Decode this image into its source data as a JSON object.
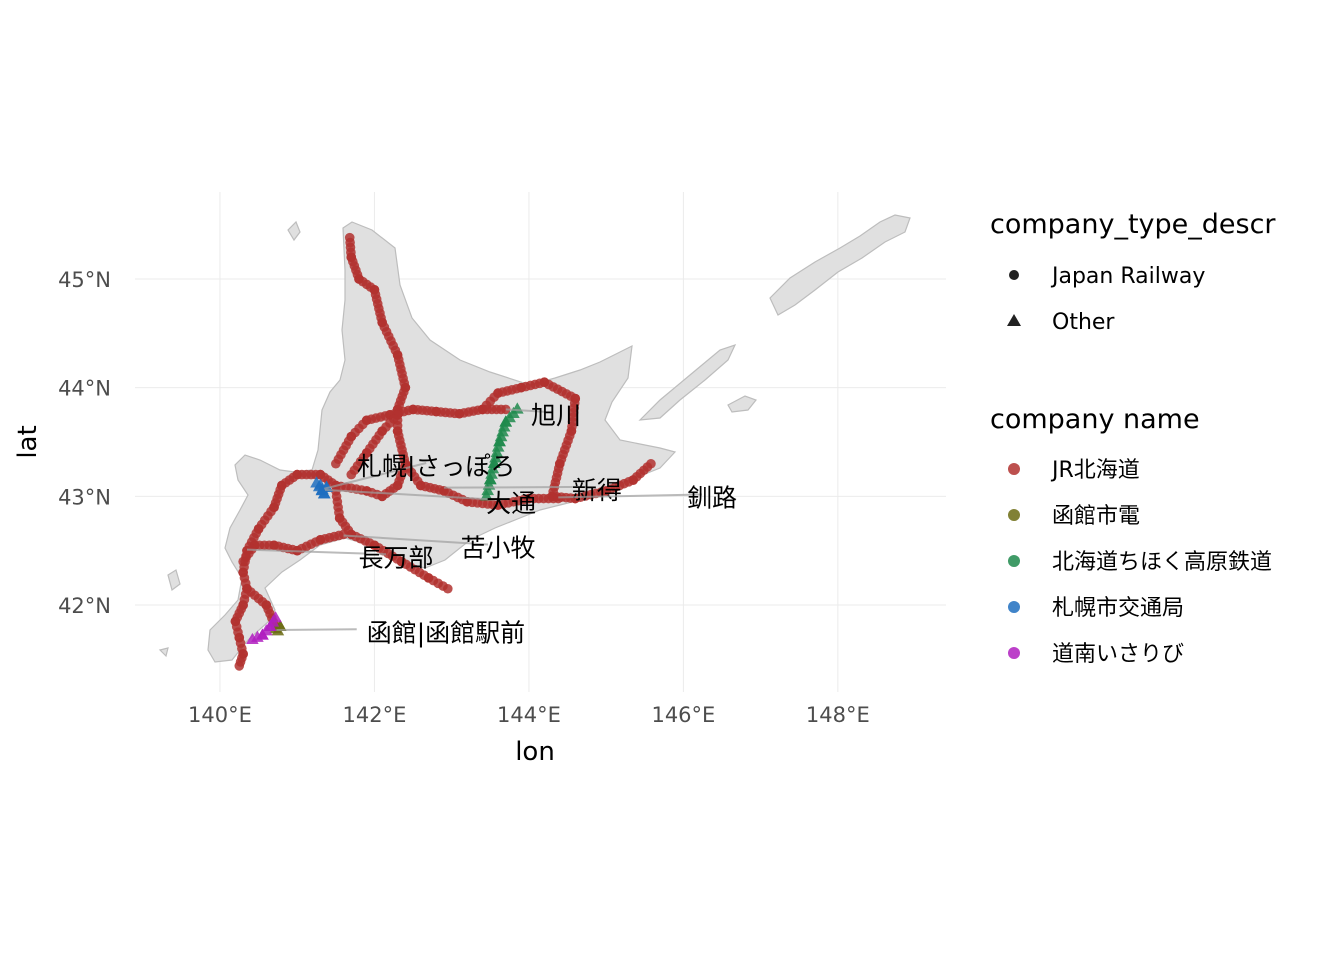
{
  "chart_data": {
    "type": "scatter",
    "xlabel": "lon",
    "ylabel": "lat",
    "xlim": [
      138.9,
      149.4
    ],
    "ylim": [
      41.2,
      45.8
    ],
    "x_ticks": [
      {
        "value": 140,
        "label": "140°E"
      },
      {
        "value": 142,
        "label": "142°E"
      },
      {
        "value": 144,
        "label": "144°E"
      },
      {
        "value": 146,
        "label": "146°E"
      },
      {
        "value": 148,
        "label": "148°E"
      }
    ],
    "y_ticks": [
      {
        "value": 42,
        "label": "42°N"
      },
      {
        "value": 43,
        "label": "43°N"
      },
      {
        "value": 44,
        "label": "44°N"
      },
      {
        "value": 45,
        "label": "45°N"
      }
    ],
    "grid": true,
    "land_color": "#e0e0e0",
    "land_border_color": "#bdbdbd",
    "legend_shape": {
      "title": "company_type_descr",
      "entries": [
        {
          "label": "Japan Railway",
          "shape": "circle"
        },
        {
          "label": "Other",
          "shape": "triangle"
        }
      ]
    },
    "legend_color": {
      "title": "company name",
      "entries": [
        {
          "label": "JR北海道",
          "color": "#b2312f"
        },
        {
          "label": "函館市電",
          "color": "#6b6b12"
        },
        {
          "label": "北海道ちほく高原鉄道",
          "color": "#1f8a4c"
        },
        {
          "label": "札幌市交通局",
          "color": "#1f6fbf"
        },
        {
          "label": "道南いさりび",
          "color": "#b01fbf"
        }
      ]
    },
    "series": [
      {
        "name": "JR北海道",
        "shape": "circle",
        "color": "#b2312f",
        "lines": [
          [
            [
              141.68,
              45.38
            ],
            [
              141.7,
              45.2
            ],
            [
              141.8,
              45.0
            ],
            [
              142.0,
              44.9
            ],
            [
              142.1,
              44.6
            ],
            [
              142.3,
              44.3
            ],
            [
              142.4,
              44.0
            ],
            [
              142.3,
              43.8
            ],
            [
              142.3,
              43.6
            ],
            [
              142.4,
              43.3
            ],
            [
              142.3,
              43.1
            ],
            [
              142.1,
              43.0
            ],
            [
              141.9,
              43.05
            ],
            [
              141.5,
              43.1
            ],
            [
              141.3,
              43.2
            ],
            [
              141.0,
              43.2
            ],
            [
              140.8,
              43.1
            ],
            [
              140.7,
              42.9
            ],
            [
              140.5,
              42.7
            ],
            [
              140.35,
              42.5
            ],
            [
              140.3,
              42.3
            ],
            [
              140.35,
              42.15
            ],
            [
              140.6,
              42.0
            ],
            [
              140.72,
              41.8
            ]
          ],
          [
            [
              141.5,
              43.3
            ],
            [
              141.7,
              43.55
            ],
            [
              141.9,
              43.7
            ],
            [
              142.2,
              43.75
            ],
            [
              142.5,
              43.8
            ],
            [
              142.8,
              43.78
            ],
            [
              143.1,
              43.76
            ],
            [
              143.4,
              43.8
            ],
            [
              143.7,
              43.8
            ]
          ],
          [
            [
              142.3,
              43.75
            ],
            [
              142.1,
              43.6
            ],
            [
              141.9,
              43.4
            ],
            [
              141.7,
              43.2
            ]
          ],
          [
            [
              143.4,
              43.8
            ],
            [
              143.6,
              43.95
            ],
            [
              143.9,
              44.0
            ],
            [
              144.2,
              44.05
            ],
            [
              144.6,
              43.9
            ],
            [
              144.55,
              43.6
            ],
            [
              144.4,
              43.3
            ],
            [
              144.3,
              43.0
            ],
            [
              144.6,
              42.98
            ],
            [
              145.0,
              43.05
            ],
            [
              145.35,
              43.15
            ],
            [
              145.58,
              43.3
            ]
          ],
          [
            [
              142.4,
              43.3
            ],
            [
              142.6,
              43.1
            ],
            [
              142.9,
              43.05
            ],
            [
              143.2,
              42.95
            ],
            [
              143.6,
              42.92
            ],
            [
              144.0,
              42.98
            ],
            [
              144.38,
              42.98
            ]
          ],
          [
            [
              141.5,
              43.05
            ],
            [
              141.55,
              42.8
            ],
            [
              141.7,
              42.65
            ],
            [
              142.0,
              42.55
            ],
            [
              142.35,
              42.4
            ],
            [
              142.7,
              42.25
            ],
            [
              142.95,
              42.15
            ]
          ],
          [
            [
              141.6,
              42.65
            ],
            [
              141.3,
              42.6
            ],
            [
              141.0,
              42.5
            ],
            [
              140.7,
              42.55
            ],
            [
              140.45,
              42.55
            ],
            [
              140.3,
              42.4
            ]
          ],
          [
            [
              140.35,
              42.15
            ],
            [
              140.3,
              42.0
            ],
            [
              140.2,
              41.85
            ],
            [
              140.25,
              41.7
            ],
            [
              140.3,
              41.55
            ],
            [
              140.25,
              41.44
            ]
          ]
        ]
      },
      {
        "name": "北海道ちほく高原鉄道",
        "shape": "triangle",
        "color": "#1f8a4c",
        "lines": [
          [
            [
              143.45,
              43.0
            ],
            [
              143.5,
              43.15
            ],
            [
              143.55,
              43.3
            ],
            [
              143.62,
              43.5
            ],
            [
              143.7,
              43.68
            ],
            [
              143.85,
              43.8
            ]
          ]
        ]
      },
      {
        "name": "札幌市交通局",
        "shape": "triangle",
        "color": "#1f6fbf",
        "lines": [
          [
            [
              141.25,
              43.12
            ],
            [
              141.32,
              43.05
            ],
            [
              141.38,
              43.08
            ],
            [
              141.35,
              43.02
            ],
            [
              141.3,
              43.1
            ]
          ]
        ]
      },
      {
        "name": "函館市電",
        "shape": "triangle",
        "color": "#6b6b12",
        "lines": [
          [
            [
              140.72,
              41.78
            ],
            [
              140.78,
              41.8
            ],
            [
              140.75,
              41.76
            ]
          ]
        ]
      },
      {
        "name": "道南いさりび",
        "shape": "triangle",
        "color": "#b01fbf",
        "lines": [
          [
            [
              140.72,
              41.88
            ],
            [
              140.65,
              41.8
            ],
            [
              140.55,
              41.72
            ],
            [
              140.42,
              41.68
            ]
          ]
        ]
      }
    ],
    "annotations": [
      {
        "text": "旭川",
        "lon": 143.7,
        "lat": 43.8,
        "label_lon": 144.35,
        "label_lat": 43.74,
        "anchor": "middle"
      },
      {
        "text": "札幌|さっぽろ",
        "lon": 141.35,
        "lat": 43.07,
        "label_lon": 142.8,
        "label_lat": 43.27,
        "anchor": "middle"
      },
      {
        "text": "新得",
        "lon": 142.9,
        "lat": 43.08,
        "label_lon": 144.88,
        "label_lat": 43.05,
        "anchor": "middle"
      },
      {
        "text": "大通",
        "lon": 141.36,
        "lat": 43.06,
        "label_lon": 143.77,
        "label_lat": 42.93,
        "anchor": "middle"
      },
      {
        "text": "釧路",
        "lon": 144.38,
        "lat": 42.99,
        "label_lon": 146.37,
        "label_lat": 42.98,
        "anchor": "middle"
      },
      {
        "text": "苫小牧",
        "lon": 141.6,
        "lat": 42.64,
        "label_lon": 143.6,
        "label_lat": 42.52,
        "anchor": "middle"
      },
      {
        "text": "長万部",
        "lon": 140.35,
        "lat": 42.51,
        "label_lon": 142.28,
        "label_lat": 42.43,
        "anchor": "middle"
      },
      {
        "text": "函館|函館駅前",
        "lon": 140.73,
        "lat": 41.77,
        "label_lon": 141.9,
        "label_lat": 41.74,
        "anchor": "start"
      }
    ]
  }
}
